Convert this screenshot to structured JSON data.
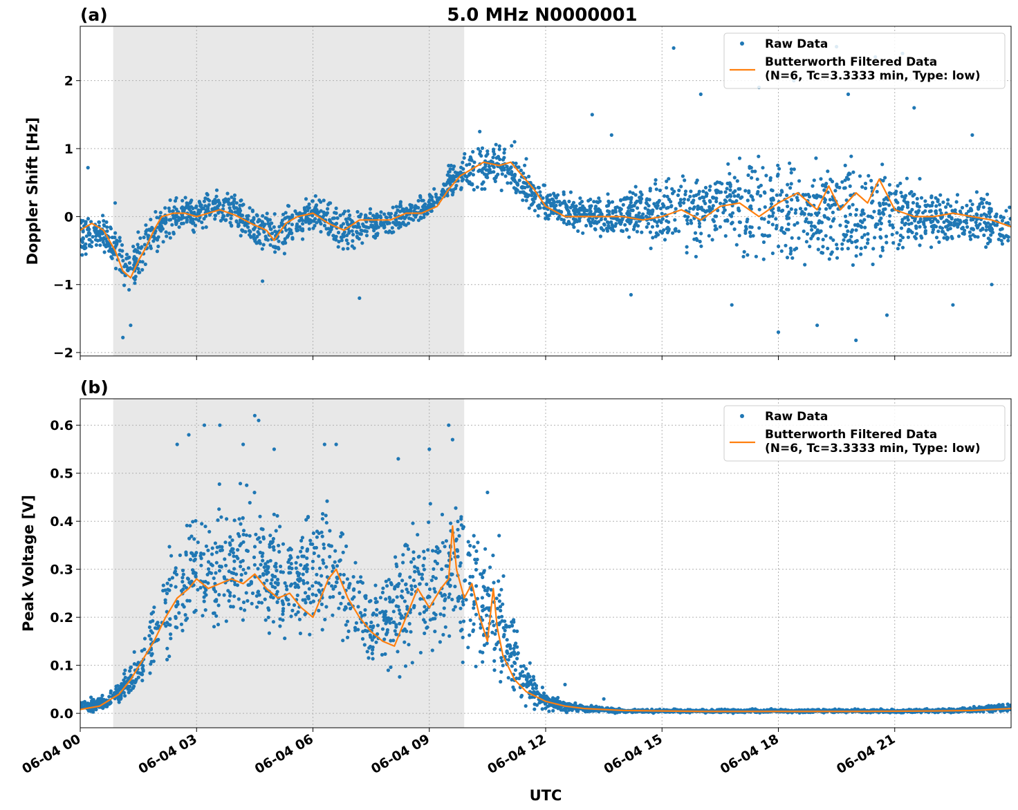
{
  "figure": {
    "title": "5.0 MHz N0000001",
    "xlabel": "UTC",
    "colors": {
      "raw": "#1f77b4",
      "filtered": "#ff7f0e",
      "shade": "#e8e8e8",
      "grid": "#b0b0b0"
    }
  },
  "chart_data": [
    {
      "type": "scatter",
      "panel": "(a)",
      "ylabel": "Doppler Shift [Hz]",
      "x_unit": "hours UTC since 06-04 00:00",
      "xlim": [
        0,
        24
      ],
      "ylim": [
        -2.05,
        2.8
      ],
      "xticks": [
        0,
        3,
        6,
        9,
        12,
        15,
        18,
        21
      ],
      "yticks": [
        -2,
        -1,
        0,
        1,
        2
      ],
      "ytick_labels": [
        "−2",
        "−1",
        "0",
        "1",
        "2"
      ],
      "grid": true,
      "legend_position": "upper-right",
      "shaded_interval": [
        0.85,
        9.9
      ],
      "series": [
        {
          "name": "Raw Data",
          "style": "points",
          "color": "#1f77b4",
          "band_x": [
            0,
            0.5,
            1,
            1.2,
            1.5,
            2,
            2.5,
            3,
            3.5,
            4,
            4.5,
            5,
            5.5,
            6,
            6.5,
            7,
            7.5,
            8,
            8.5,
            9,
            9.5,
            10,
            10.5,
            11,
            11.5,
            12,
            12.5,
            13,
            13.5,
            14,
            14.5,
            15,
            15.5,
            16,
            16.5,
            17,
            17.5,
            18,
            18.5,
            19,
            19.5,
            20,
            20.5,
            21,
            21.5,
            22,
            22.5,
            23,
            23.5,
            24
          ],
          "band_low": [
            -0.8,
            -0.5,
            -1.1,
            -1.5,
            -1.2,
            -0.6,
            -0.3,
            -0.3,
            -0.2,
            -0.3,
            -0.6,
            -0.8,
            -0.5,
            -0.3,
            -0.6,
            -0.6,
            -0.4,
            -0.4,
            -0.2,
            -0.1,
            0.2,
            0.2,
            0.3,
            0.3,
            0.0,
            -0.2,
            -0.2,
            -0.3,
            -0.4,
            -0.4,
            -0.5,
            -0.6,
            -0.7,
            -0.7,
            -0.6,
            -0.8,
            -0.9,
            -1.0,
            -0.9,
            -0.9,
            -1.0,
            -1.0,
            -0.8,
            -0.7,
            -0.6,
            -0.6,
            -0.6,
            -0.6,
            -0.6,
            -0.6
          ],
          "band_high": [
            0.2,
            0.1,
            0.0,
            -0.2,
            0.0,
            0.2,
            0.4,
            0.4,
            0.5,
            0.4,
            0.3,
            0.2,
            0.3,
            0.4,
            0.3,
            0.2,
            0.2,
            0.2,
            0.3,
            0.4,
            0.8,
            1.1,
            1.2,
            1.2,
            0.8,
            0.5,
            0.4,
            0.4,
            0.4,
            0.5,
            0.6,
            0.7,
            0.8,
            0.9,
            1.0,
            1.1,
            1.1,
            1.2,
            1.1,
            1.1,
            1.2,
            1.1,
            1.0,
            0.8,
            0.7,
            0.6,
            0.5,
            0.5,
            0.4,
            0.3
          ],
          "outliers": [
            [
              0.2,
              0.72
            ],
            [
              0.9,
              0.2
            ],
            [
              1.1,
              -1.78
            ],
            [
              1.3,
              -1.6
            ],
            [
              4.7,
              -0.95
            ],
            [
              7.2,
              -1.2
            ],
            [
              9.5,
              0.75
            ],
            [
              10.3,
              1.25
            ],
            [
              11.2,
              1.1
            ],
            [
              11.5,
              0.85
            ],
            [
              13.2,
              1.5
            ],
            [
              13.7,
              1.2
            ],
            [
              14.2,
              -1.15
            ],
            [
              15.3,
              2.48
            ],
            [
              16.0,
              1.8
            ],
            [
              16.8,
              -1.3
            ],
            [
              17.5,
              1.9
            ],
            [
              18.0,
              -1.7
            ],
            [
              18.4,
              2.0
            ],
            [
              19.0,
              -1.6
            ],
            [
              19.5,
              2.5
            ],
            [
              19.8,
              1.8
            ],
            [
              20.0,
              -1.82
            ],
            [
              20.5,
              2.35
            ],
            [
              20.8,
              -1.45
            ],
            [
              21.2,
              2.4
            ],
            [
              21.5,
              1.6
            ],
            [
              22.5,
              -1.3
            ],
            [
              23.0,
              1.2
            ],
            [
              23.5,
              -1.0
            ]
          ]
        },
        {
          "name": "Butterworth Filtered Data\n(N=6, Tc=3.3333 min, Type: low)",
          "style": "line",
          "color": "#ff7f0e",
          "x": [
            0,
            0.3,
            0.6,
            0.9,
            1.1,
            1.3,
            1.5,
            1.7,
            1.9,
            2.1,
            2.4,
            2.7,
            3.0,
            3.3,
            3.6,
            4.0,
            4.4,
            4.8,
            5.0,
            5.3,
            5.6,
            6.0,
            6.4,
            6.8,
            7.2,
            7.6,
            8.0,
            8.4,
            8.8,
            9.2,
            9.5,
            9.8,
            10.1,
            10.4,
            10.8,
            11.1,
            11.4,
            11.7,
            12.0,
            12.5,
            13.0,
            13.5,
            14.0,
            14.5,
            15.0,
            15.5,
            16.0,
            16.5,
            17.0,
            17.5,
            18.0,
            18.5,
            19.0,
            19.3,
            19.6,
            20.0,
            20.3,
            20.6,
            21.0,
            21.5,
            22.0,
            22.5,
            23.0,
            23.5,
            24.0
          ],
          "y": [
            -0.2,
            -0.1,
            -0.2,
            -0.5,
            -0.8,
            -0.9,
            -0.65,
            -0.45,
            -0.2,
            0.0,
            0.05,
            0.05,
            0.0,
            0.05,
            0.1,
            0.02,
            -0.1,
            -0.2,
            -0.35,
            -0.1,
            0.0,
            0.05,
            -0.1,
            -0.2,
            -0.05,
            -0.05,
            -0.05,
            0.05,
            0.05,
            0.15,
            0.4,
            0.6,
            0.7,
            0.8,
            0.75,
            0.8,
            0.6,
            0.4,
            0.15,
            0.0,
            0.0,
            0.0,
            0.0,
            -0.05,
            0.0,
            0.1,
            -0.05,
            0.15,
            0.2,
            0.0,
            0.2,
            0.35,
            0.1,
            0.45,
            0.1,
            0.35,
            0.2,
            0.55,
            0.1,
            0.0,
            0.0,
            0.05,
            0.0,
            -0.05,
            -0.15
          ]
        }
      ]
    },
    {
      "type": "scatter",
      "panel": "(b)",
      "ylabel": "Peak Voltage [V]",
      "x_unit": "hours UTC since 06-04 00:00",
      "xlim": [
        0,
        24
      ],
      "ylim": [
        -0.03,
        0.655
      ],
      "xticks": [
        0,
        3,
        6,
        9,
        12,
        15,
        18,
        21
      ],
      "xtick_labels": [
        "06-04 00",
        "06-04 03",
        "06-04 06",
        "06-04 09",
        "06-04 12",
        "06-04 15",
        "06-04 18",
        "06-04 21"
      ],
      "yticks": [
        0.0,
        0.1,
        0.2,
        0.3,
        0.4,
        0.5,
        0.6
      ],
      "ytick_labels": [
        "0.0",
        "0.1",
        "0.2",
        "0.3",
        "0.4",
        "0.5",
        "0.6"
      ],
      "grid": true,
      "legend_position": "upper-right",
      "shaded_interval": [
        0.85,
        9.9
      ],
      "series": [
        {
          "name": "Raw Data",
          "style": "points",
          "color": "#1f77b4",
          "band_x": [
            0,
            0.5,
            1,
            1.5,
            2,
            2.5,
            3,
            3.5,
            4,
            4.5,
            5,
            5.5,
            6,
            6.5,
            7,
            7.5,
            8,
            8.5,
            9,
            9.5,
            9.8,
            10.2,
            10.6,
            11,
            11.5,
            12,
            12.5,
            13,
            14,
            16,
            18,
            20,
            22,
            23,
            24
          ],
          "band_low": [
            0.0,
            0.0,
            0.01,
            0.03,
            0.06,
            0.09,
            0.11,
            0.12,
            0.12,
            0.12,
            0.1,
            0.11,
            0.12,
            0.12,
            0.1,
            0.07,
            0.06,
            0.07,
            0.08,
            0.1,
            0.09,
            0.06,
            0.04,
            0.02,
            0.0,
            0.0,
            0.0,
            0.0,
            0.0,
            0.0,
            0.0,
            0.0,
            0.0,
            0.0,
            0.0
          ],
          "band_high": [
            0.03,
            0.04,
            0.07,
            0.15,
            0.3,
            0.42,
            0.47,
            0.48,
            0.5,
            0.52,
            0.46,
            0.42,
            0.47,
            0.48,
            0.38,
            0.3,
            0.35,
            0.44,
            0.48,
            0.52,
            0.5,
            0.44,
            0.38,
            0.3,
            0.12,
            0.05,
            0.03,
            0.02,
            0.01,
            0.01,
            0.01,
            0.01,
            0.01,
            0.015,
            0.025
          ],
          "outliers": [
            [
              2.5,
              0.56
            ],
            [
              2.8,
              0.58
            ],
            [
              3.2,
              0.6
            ],
            [
              3.6,
              0.6
            ],
            [
              4.2,
              0.56
            ],
            [
              4.5,
              0.62
            ],
            [
              4.6,
              0.61
            ],
            [
              5.0,
              0.55
            ],
            [
              6.3,
              0.56
            ],
            [
              6.6,
              0.56
            ],
            [
              8.2,
              0.53
            ],
            [
              9.0,
              0.55
            ],
            [
              9.5,
              0.6
            ],
            [
              9.6,
              0.57
            ],
            [
              10.5,
              0.46
            ],
            [
              10.8,
              0.37
            ],
            [
              12.5,
              0.06
            ],
            [
              13.5,
              0.03
            ]
          ]
        },
        {
          "name": "Butterworth Filtered Data\n(N=6, Tc=3.3333 min, Type: low)",
          "style": "line",
          "color": "#ff7f0e",
          "x": [
            0,
            0.5,
            1.0,
            1.3,
            1.6,
            1.9,
            2.2,
            2.5,
            2.8,
            3.0,
            3.3,
            3.6,
            3.9,
            4.2,
            4.5,
            4.8,
            5.1,
            5.4,
            5.7,
            6.0,
            6.2,
            6.4,
            6.6,
            6.9,
            7.2,
            7.5,
            7.8,
            8.1,
            8.4,
            8.7,
            9.0,
            9.3,
            9.5,
            9.6,
            9.7,
            9.9,
            10.1,
            10.3,
            10.5,
            10.65,
            10.75,
            10.9,
            11.2,
            11.5,
            12.0,
            12.5,
            13.0,
            13.5,
            14.0,
            16.0,
            18.0,
            20.0,
            22.0,
            23.0,
            24.0
          ],
          "y": [
            0.008,
            0.015,
            0.04,
            0.07,
            0.11,
            0.15,
            0.2,
            0.24,
            0.26,
            0.28,
            0.26,
            0.27,
            0.28,
            0.27,
            0.29,
            0.26,
            0.24,
            0.25,
            0.22,
            0.2,
            0.24,
            0.28,
            0.3,
            0.24,
            0.2,
            0.17,
            0.15,
            0.14,
            0.2,
            0.26,
            0.22,
            0.26,
            0.28,
            0.39,
            0.3,
            0.24,
            0.27,
            0.2,
            0.15,
            0.26,
            0.18,
            0.12,
            0.07,
            0.045,
            0.025,
            0.015,
            0.01,
            0.008,
            0.006,
            0.004,
            0.004,
            0.004,
            0.005,
            0.006,
            0.01
          ]
        }
      ]
    }
  ]
}
